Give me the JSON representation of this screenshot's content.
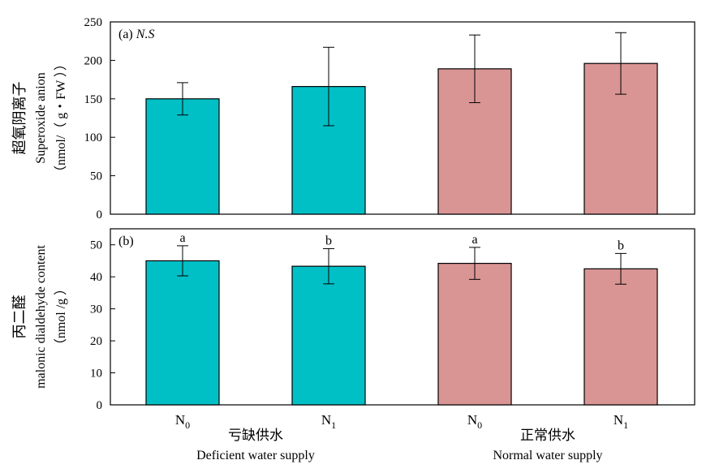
{
  "colors": {
    "deficient": "#00C0C6",
    "normal": "#D99594",
    "axis": "#000000"
  },
  "groups": [
    {
      "name_cn": "亏缺供水",
      "name_en": "Deficient water supply"
    },
    {
      "name_cn": "正常供水",
      "name_en": "Normal water supply"
    }
  ],
  "subscript_labels": [
    {
      "base": "N",
      "sub": "0"
    },
    {
      "base": "N",
      "sub": "1"
    },
    {
      "base": "N",
      "sub": "0"
    },
    {
      "base": "N",
      "sub": "1"
    }
  ],
  "chart_data": [
    {
      "type": "bar",
      "panel_label": "(a)",
      "annotation": "N.S",
      "ylabel_cn": "超氧阴离子",
      "ylabel_en": "Superoxide anion",
      "ylabel_unit": "（nmol/（ g・FW ））",
      "ylim": [
        0,
        250
      ],
      "yticks": [
        0,
        50,
        100,
        150,
        200,
        250
      ],
      "categories": [
        "N0",
        "N1",
        "N0",
        "N1"
      ],
      "series": [
        {
          "values": [
            150,
            166,
            189,
            196
          ],
          "errors": [
            21,
            51,
            44,
            40
          ]
        }
      ],
      "bar_groups": [
        "deficient",
        "deficient",
        "normal",
        "normal"
      ],
      "letters": [
        "",
        "",
        "",
        ""
      ]
    },
    {
      "type": "bar",
      "panel_label": "(b)",
      "annotation": "",
      "ylabel_cn": "丙二醛",
      "ylabel_en": "malonic dialdehyde content",
      "ylabel_unit": "（nmol /g ）",
      "ylim": [
        0,
        55
      ],
      "yticks": [
        0,
        10,
        20,
        30,
        40,
        50
      ],
      "categories": [
        "N0",
        "N1",
        "N0",
        "N1"
      ],
      "series": [
        {
          "values": [
            45,
            43.3,
            44.2,
            42.5
          ],
          "errors": [
            4.7,
            5.5,
            5,
            4.8
          ]
        }
      ],
      "bar_groups": [
        "deficient",
        "deficient",
        "normal",
        "normal"
      ],
      "letters": [
        "a",
        "b",
        "a",
        "b"
      ]
    }
  ]
}
